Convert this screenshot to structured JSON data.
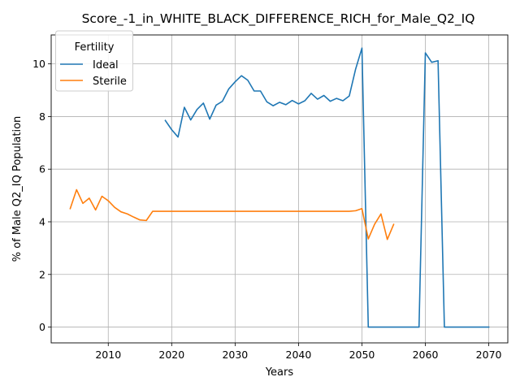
{
  "chart_data": {
    "type": "line",
    "title": "Score_-1_in_WHITE_BLACK_DIFFERENCE_RICH_for_Male_Q2_IQ",
    "xlabel": "Years",
    "ylabel": "% of Male Q2_IQ Population",
    "xlim": [
      2001,
      2073
    ],
    "ylim": [
      -0.6,
      11.1
    ],
    "xticks": [
      2010,
      2020,
      2030,
      2040,
      2050,
      2060,
      2070
    ],
    "yticks": [
      0,
      2,
      4,
      6,
      8,
      10
    ],
    "grid": true,
    "legend": {
      "title": "Fertility",
      "placement": "top-left"
    },
    "series": [
      {
        "name": "Ideal",
        "color": "#1f77b4",
        "x": [
          2019,
          2020,
          2021,
          2022,
          2023,
          2024,
          2025,
          2026,
          2027,
          2028,
          2029,
          2030,
          2031,
          2032,
          2033,
          2034,
          2035,
          2036,
          2037,
          2038,
          2039,
          2040,
          2041,
          2042,
          2043,
          2044,
          2045,
          2046,
          2047,
          2048,
          2049,
          2050,
          2051,
          2052,
          2053,
          2054,
          2055,
          2056,
          2057,
          2058,
          2059,
          2060,
          2061,
          2062,
          2063,
          2064,
          2065,
          2066,
          2067,
          2068,
          2069,
          2070
        ],
        "y": [
          7.85,
          7.5,
          7.22,
          8.35,
          7.87,
          8.27,
          8.51,
          7.9,
          8.43,
          8.58,
          9.05,
          9.32,
          9.55,
          9.38,
          8.97,
          8.97,
          8.56,
          8.41,
          8.54,
          8.45,
          8.61,
          8.48,
          8.6,
          8.88,
          8.66,
          8.8,
          8.58,
          8.69,
          8.6,
          8.78,
          9.8,
          10.6,
          0,
          0,
          0,
          0,
          0,
          0,
          0,
          0,
          0,
          10.42,
          10.06,
          10.12,
          0,
          0,
          0,
          0,
          0,
          0,
          0,
          0
        ]
      },
      {
        "name": "Sterile",
        "color": "#ff7f0e",
        "x": [
          2004,
          2005,
          2006,
          2007,
          2008,
          2009,
          2010,
          2011,
          2012,
          2013,
          2014,
          2015,
          2016,
          2017,
          2018,
          2019,
          2020,
          2021,
          2022,
          2023,
          2024,
          2025,
          2026,
          2027,
          2028,
          2029,
          2030,
          2031,
          2032,
          2033,
          2034,
          2035,
          2036,
          2037,
          2038,
          2039,
          2040,
          2041,
          2042,
          2043,
          2044,
          2045,
          2046,
          2047,
          2048,
          2049,
          2050,
          2051,
          2052,
          2053,
          2054,
          2055
        ],
        "y": [
          4.5,
          5.22,
          4.7,
          4.9,
          4.45,
          4.97,
          4.8,
          4.55,
          4.38,
          4.3,
          4.18,
          4.07,
          4.05,
          4.4,
          4.4,
          4.4,
          4.4,
          4.4,
          4.4,
          4.4,
          4.4,
          4.4,
          4.4,
          4.4,
          4.4,
          4.4,
          4.4,
          4.4,
          4.4,
          4.4,
          4.4,
          4.4,
          4.4,
          4.4,
          4.4,
          4.4,
          4.4,
          4.4,
          4.4,
          4.4,
          4.4,
          4.4,
          4.4,
          4.4,
          4.4,
          4.42,
          4.5,
          3.35,
          3.91,
          4.3,
          3.33,
          3.9
        ]
      }
    ]
  }
}
